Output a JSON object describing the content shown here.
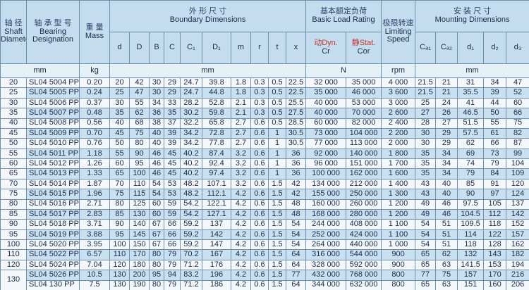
{
  "header": {
    "shaft": {
      "zh": "轴 径",
      "en": "Shaft Diameter"
    },
    "designation": {
      "zh": "轴 承 型 号",
      "en": "Bearing Designation"
    },
    "mass": {
      "zh": "重 量",
      "en": "Mass"
    },
    "boundary": {
      "zh": "外 形 尺 寸",
      "en": "Boundary Dimensions"
    },
    "load": {
      "zh": "基本额定负荷",
      "en": "Basic Load Rating"
    },
    "speed": {
      "zh": "极限转速",
      "en": "Limiting Speed"
    },
    "mounting": {
      "zh": "安 装 尺 寸",
      "en": "Mounting Dimensions"
    },
    "boundary_cols": [
      "d",
      "D",
      "B",
      "C",
      "C₁",
      "D₁",
      "m",
      "r",
      "t",
      "x"
    ],
    "dyn": {
      "zh": "动Dyn.",
      "en": "Cr"
    },
    "stat": {
      "zh": "静Stat.",
      "en": "Cor"
    },
    "mounting_cols": [
      "Cₐ₁",
      "Cₐ₂",
      "d₁",
      "d₂",
      "d₃"
    ],
    "units": {
      "shaft": "mm",
      "mass": "kg",
      "boundary": "mm",
      "load": "N",
      "speed": "rpm",
      "mounting": "mm"
    }
  },
  "table": {
    "rows": [
      [
        "20",
        "SL04 5004 PP",
        "0.20",
        "20",
        "42",
        "30",
        "29",
        "24.7",
        "39.8",
        "1.8",
        "0.3",
        "0.5",
        "22.5",
        "32 000",
        "35 000",
        "4 000",
        "21.5",
        "21",
        "31",
        "34",
        "47"
      ],
      [
        "25",
        "SL04 5005 PP",
        "0.24",
        "25",
        "47",
        "30",
        "29",
        "24.7",
        "44.8",
        "1.8",
        "0.3",
        "0.5",
        "22.5",
        "35 000",
        "46 000",
        "3 600",
        "21.5",
        "21",
        "35.5",
        "39",
        "52"
      ],
      [
        "30",
        "SL04 5006 PP",
        "0.37",
        "30",
        "55",
        "34",
        "33",
        "28.2",
        "52.8",
        "2.1",
        "0.3",
        "0.5",
        "25.5",
        "40 000",
        "53 000",
        "3 000",
        "25",
        "24",
        "41",
        "44",
        "60"
      ],
      [
        "35",
        "SL04 5007 PP",
        "0.48",
        "35",
        "62",
        "36",
        "35",
        "30.2",
        "59.8",
        "2.1",
        "0.3",
        "0.5",
        "27.5",
        "40 000",
        "70 000",
        "2 600",
        "27",
        "26",
        "46.5",
        "50",
        "66"
      ],
      [
        "40",
        "SL04 5008 PP",
        "0.56",
        "40",
        "68",
        "38",
        "37",
        "32.2",
        "65.8",
        "2.7",
        "0.6",
        "0.5",
        "28.5",
        "60 000",
        "82 000",
        "2 400",
        "28",
        "27",
        "51.5",
        "55",
        "75"
      ],
      [
        "45",
        "SL04 5009 PP",
        "0.70",
        "45",
        "75",
        "40",
        "39",
        "34.2",
        "72.8",
        "2.7",
        "0.6",
        "1",
        "30.5",
        "73 000",
        "104 000",
        "2 200",
        "30",
        "29",
        "57.5",
        "61",
        "82"
      ],
      [
        "50",
        "SL04 5010 PP",
        "0.76",
        "50",
        "80",
        "40",
        "39",
        "34.2",
        "77.8",
        "2.7",
        "0.6",
        "1",
        "30.5",
        "77 000",
        "113 000",
        "2 000",
        "30",
        "29",
        "62",
        "66",
        "87"
      ],
      [
        "55",
        "SL04 5011 PP",
        "1.18",
        "55",
        "90",
        "46",
        "45",
        "40.2",
        "87.4",
        "3.2",
        "0.6",
        "1",
        "36",
        "92 000",
        "140 000",
        "1 800",
        "35",
        "34",
        "69",
        "73",
        "99"
      ],
      [
        "60",
        "SL04 5012 PP",
        "1.26",
        "60",
        "95",
        "46",
        "45",
        "40.2",
        "92.4",
        "3.2",
        "0.6",
        "1",
        "36",
        "96 000",
        "151 000",
        "1 700",
        "35",
        "34",
        "74",
        "79",
        "104"
      ],
      [
        "65",
        "SL04 5013 PP",
        "1.33",
        "65",
        "100",
        "46",
        "45",
        "40.2",
        "97.4",
        "3.2",
        "0.6",
        "1",
        "36",
        "100 000",
        "162 000",
        "1 600",
        "35",
        "34",
        "79",
        "84",
        "109"
      ],
      [
        "70",
        "SL04 5014 PP",
        "1.87",
        "70",
        "110",
        "54",
        "53",
        "48.2",
        "107.1",
        "3.2",
        "0.6",
        "1.5",
        "42",
        "134 000",
        "212 000",
        "1 400",
        "43",
        "40",
        "85",
        "91",
        "120"
      ],
      [
        "75",
        "SL04 5015 PP",
        "1.96",
        "75",
        "115",
        "54",
        "53",
        "48.2",
        "112.1",
        "4.2",
        "0.6",
        "1.5",
        "42",
        "155 000",
        "250 000",
        "1 300",
        "43",
        "40",
        "90",
        "97",
        "124"
      ],
      [
        "80",
        "SL04 5016 PP",
        "2.71",
        "80",
        "125",
        "60",
        "59",
        "54.2",
        "122.1",
        "4.2",
        "0.6",
        "1.5",
        "48",
        "160 000",
        "260 000",
        "1 200",
        "49",
        "46",
        "97.5",
        "105",
        "137"
      ],
      [
        "85",
        "SL04 5017 PP",
        "2.83",
        "85",
        "130",
        "60",
        "59",
        "54.2",
        "127.1",
        "4.2",
        "0.6",
        "1.5",
        "48",
        "168 000",
        "280 000",
        "1 200",
        "49",
        "46",
        "104.5",
        "112",
        "142"
      ],
      [
        "90",
        "SL04 5018 PP",
        "3.71",
        "90",
        "140",
        "67",
        "66",
        "59.2",
        "137",
        "4.2",
        "0.6",
        "1.5",
        "54",
        "244 000",
        "408 000",
        "1 100",
        "54",
        "51",
        "109.5",
        "118",
        "152"
      ],
      [
        "95",
        "SL04 5019 PP",
        "3.88",
        "95",
        "145",
        "67",
        "66",
        "59.2",
        "142",
        "4.2",
        "0.6",
        "1.5",
        "54",
        "252 000",
        "424 000",
        "1 100",
        "54",
        "51",
        "114",
        "122",
        "157"
      ],
      [
        "100",
        "SL04 5020 PP",
        "3.95",
        "100",
        "150",
        "67",
        "66",
        "59.2",
        "147",
        "4.2",
        "0.6",
        "1.5",
        "54",
        "264 000",
        "440 000",
        "1 000",
        "54",
        "51",
        "118",
        "128",
        "162"
      ],
      [
        "110",
        "SL04 5022 PP",
        "6.57",
        "110",
        "170",
        "80",
        "79",
        "70.2",
        "167",
        "4.2",
        "0.6",
        "1.5",
        "64",
        "316 000",
        "544 000",
        "900",
        "65",
        "62",
        "132",
        "143",
        "182"
      ],
      [
        "120",
        "SL04 5024 PP",
        "7.04",
        "120",
        "180",
        "80",
        "79",
        "71.2",
        "176",
        "4.2",
        "0.6",
        "1.5",
        "64",
        "328 000",
        "592 000",
        "900",
        "65",
        "63",
        "141.5",
        "153",
        "194"
      ],
      [
        "130",
        "SL04 5026 PP",
        "10.5",
        "130",
        "200",
        "95",
        "94",
        "83.2",
        "196",
        "4.2",
        "0.6",
        "1.5",
        "77",
        "432 000",
        "768 000",
        "800",
        "77",
        "75",
        "157",
        "170",
        "216"
      ],
      [
        "SL04 130 PP",
        "7.5",
        "130",
        "190",
        "80",
        "79",
        "71.2",
        "186",
        "4.2",
        "0.6",
        "1.5",
        "64",
        "344 000",
        "632 000",
        "800",
        "65",
        "63",
        "151",
        "160",
        "206"
      ]
    ]
  }
}
